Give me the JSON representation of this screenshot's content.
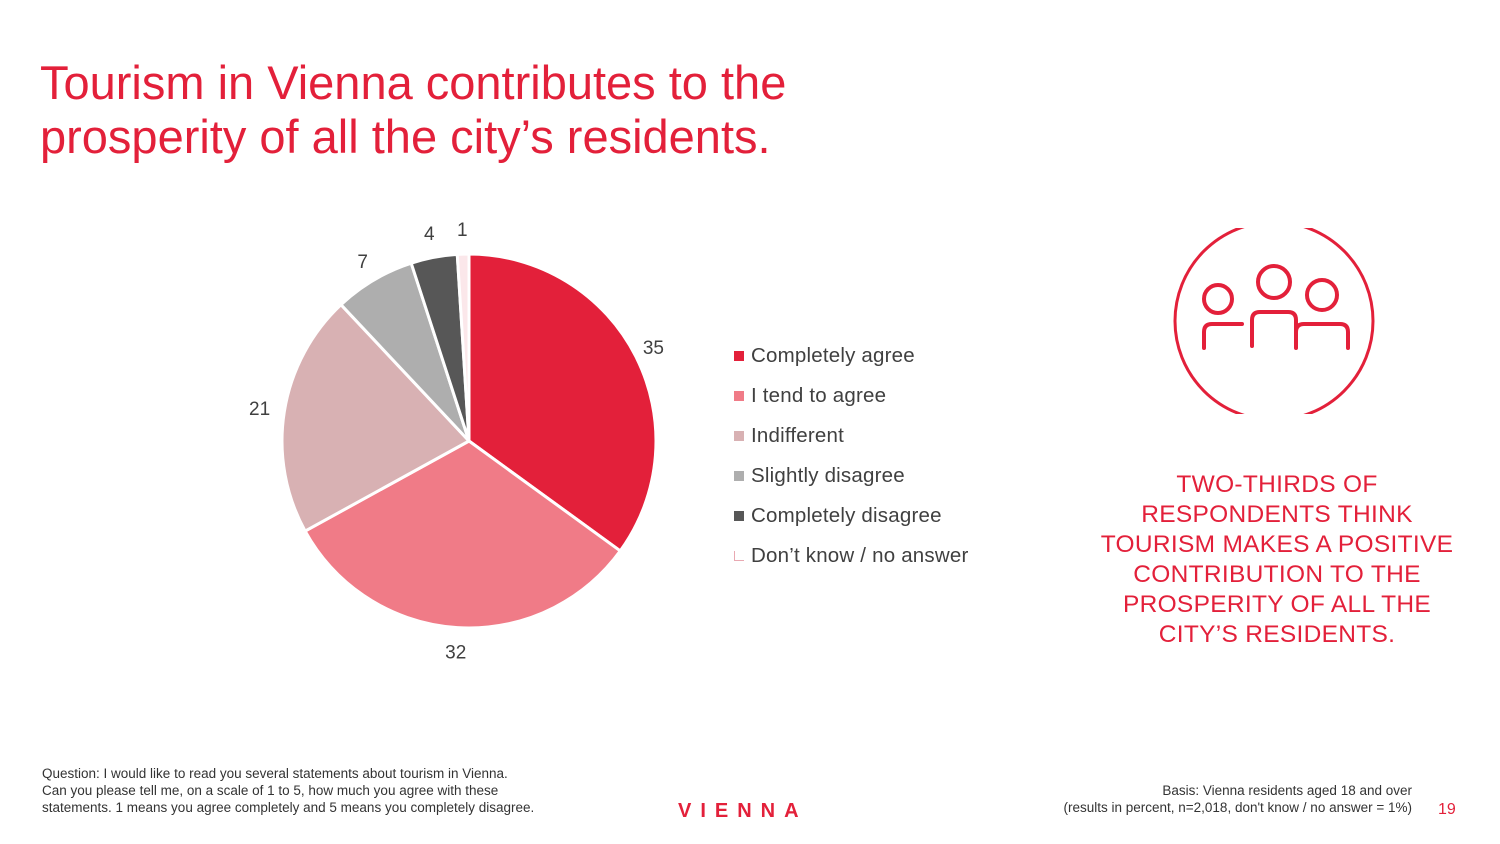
{
  "title": {
    "line1": "Tourism in Vienna contributes to the",
    "line2": "prosperity of all the city’s residents."
  },
  "chart_data": {
    "type": "pie",
    "categories": [
      "Completely agree",
      "I tend to agree",
      "Indifferent",
      "Slightly disagree",
      "Completely disagree",
      "Don’t know / no answer"
    ],
    "values": [
      35,
      32,
      21,
      7,
      4,
      1
    ],
    "colors": [
      "#e3203a",
      "#f07b87",
      "#d8b1b3",
      "#aeaeae",
      "#575757",
      "#fbe7ea"
    ],
    "labels": [
      "35",
      "32",
      "21",
      "7",
      "4",
      "1"
    ],
    "legend_position": "right",
    "start_angle_deg": 0,
    "direction": "clockwise"
  },
  "legend": [
    {
      "label": "Completely agree",
      "color": "#e3203a"
    },
    {
      "label": "I tend to agree",
      "color": "#f07b87"
    },
    {
      "label": "Indifferent",
      "color": "#d8b1b3"
    },
    {
      "label": "Slightly disagree",
      "color": "#aeaeae"
    },
    {
      "label": "Completely disagree",
      "color": "#575757"
    },
    {
      "label": "Don’t know / no answer",
      "color": "none"
    }
  ],
  "callout": {
    "lines": [
      "TWO-THIRDS OF",
      "RESPONDENTS THINK",
      "TOURISM MAKES A POSITIVE",
      "CONTRIBUTION TO THE",
      "PROSPERITY OF ALL THE",
      "CITY’S RESIDENTS."
    ]
  },
  "icons": {
    "people": "people-group-icon"
  },
  "footnote_left": {
    "lines": [
      "Question: I would like to read you several statements about tourism in Vienna.",
      "Can you please tell me, on a scale of 1 to 5, how much you agree with these",
      "statements. 1 means you agree completely and 5 means you completely disagree."
    ]
  },
  "footnote_right": {
    "lines": [
      "Basis: Vienna residents aged 18 and over",
      "(results in percent, n=2,018, don't know / no answer = 1%)"
    ]
  },
  "logo": "VIENNA",
  "page_number": "19",
  "brand_color": "#e3203a"
}
